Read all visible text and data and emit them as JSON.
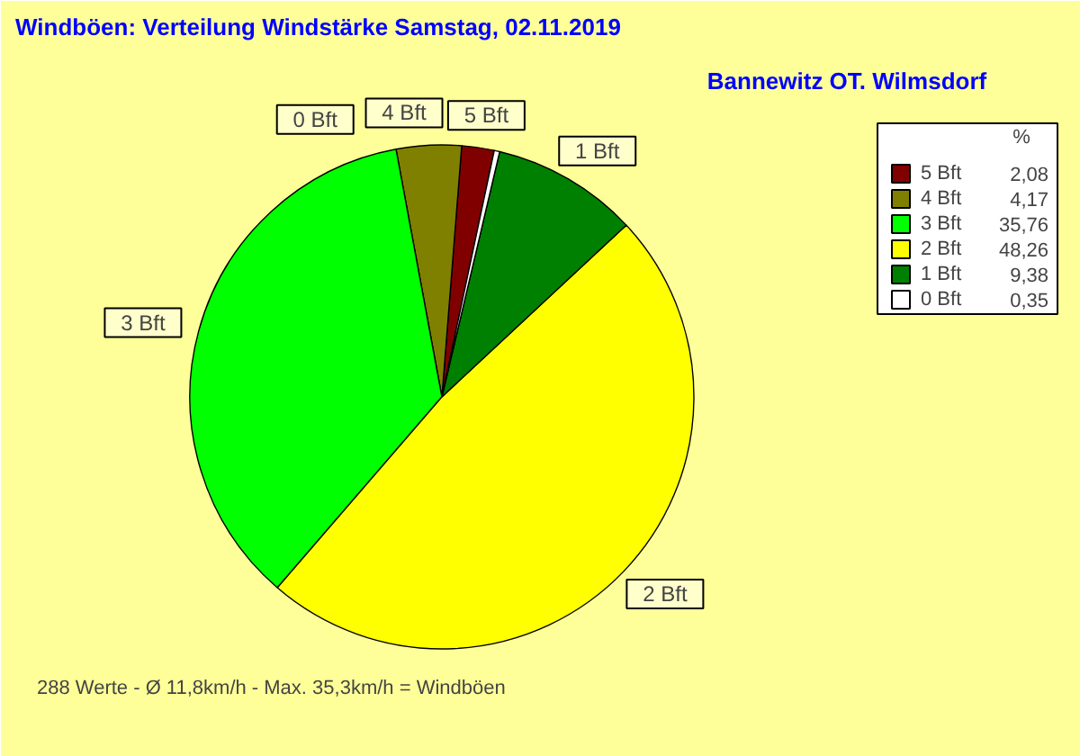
{
  "chart_data": {
    "type": "pie",
    "title": "Windböen: Verteilung Windstärke  Samstag, 02.11.2019",
    "subtitle": "Bannewitz OT. Wilmsdorf",
    "legend_title": "%",
    "legend": "top right",
    "categories": [
      "5 Bft",
      "4 Bft",
      "3 Bft",
      "2 Bft",
      "1 Bft",
      "0 Bft"
    ],
    "values": [
      2.08,
      4.17,
      35.76,
      48.26,
      9.38,
      0.35
    ],
    "value_labels": [
      "2,08",
      "4,17",
      "35,76",
      "48,26",
      "9,38",
      "0,35"
    ],
    "colors": [
      "#800000",
      "#808000",
      "#00ff00",
      "#ffff00",
      "#008000",
      "#ffffff"
    ],
    "annotations": [
      "288 Werte   -   Ø 11,8km/h  -  Max. 35,3km/h = Windböen"
    ]
  }
}
